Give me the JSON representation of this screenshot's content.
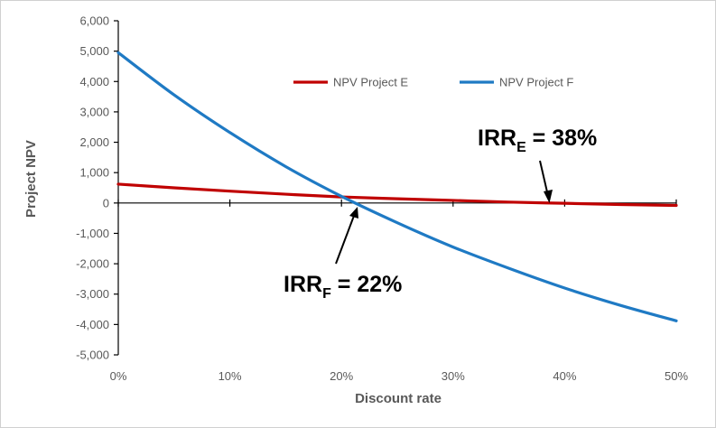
{
  "chart_data": {
    "type": "line",
    "title": "",
    "xlabel": "Discount rate",
    "ylabel": "Project NPV",
    "xlim": [
      0,
      50
    ],
    "ylim": [
      -5000,
      6000
    ],
    "x_ticks": [
      0,
      10,
      20,
      30,
      40,
      50
    ],
    "x_tick_labels": [
      "0%",
      "10%",
      "20%",
      "30%",
      "40%",
      "50%"
    ],
    "y_ticks": [
      -5000,
      -4000,
      -3000,
      -2000,
      -1000,
      0,
      1000,
      2000,
      3000,
      4000,
      5000,
      6000
    ],
    "y_tick_labels": [
      "-5,000",
      "-4,000",
      "-3,000",
      "-2,000",
      "-1,000",
      "0",
      "1,000",
      "2,000",
      "3,000",
      "4,000",
      "5,000",
      "6,000"
    ],
    "grid": false,
    "legend_position": "top",
    "series": [
      {
        "name": "NPV Project E",
        "color": "#c00000",
        "x": [
          0,
          5,
          10,
          15,
          20,
          25,
          30,
          35,
          40,
          45,
          50
        ],
        "y": [
          620,
          500,
          390,
          290,
          200,
          140,
          85,
          30,
          -10,
          -50,
          -80
        ]
      },
      {
        "name": "NPV Project F",
        "color": "#1f7ac4",
        "x": [
          0,
          5,
          10,
          15,
          20,
          25,
          30,
          35,
          40,
          45,
          50
        ],
        "y": [
          4950,
          3560,
          2320,
          1200,
          220,
          -650,
          -1450,
          -2150,
          -2800,
          -3370,
          -3880
        ]
      }
    ],
    "annotations": [
      {
        "id": "irr_e",
        "main": "IRR",
        "sub": "E",
        "rest": " = 38%",
        "x": 38,
        "y": 0
      },
      {
        "id": "irr_f",
        "main": "IRR",
        "sub": "F",
        "rest": " = 22%",
        "x": 21.5,
        "y": 0
      }
    ]
  }
}
